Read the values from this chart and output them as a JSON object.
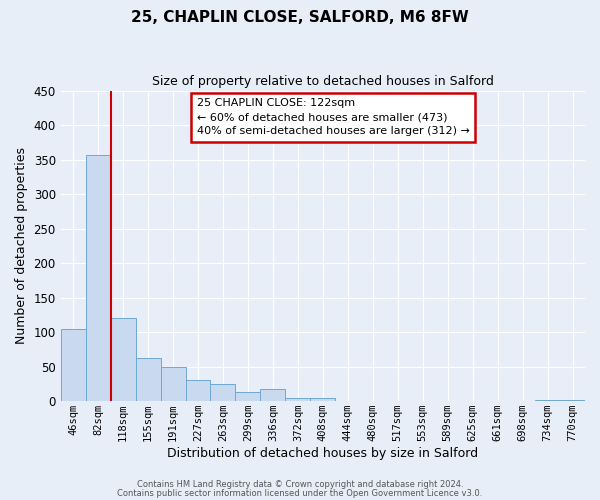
{
  "title": "25, CHAPLIN CLOSE, SALFORD, M6 8FW",
  "subtitle": "Size of property relative to detached houses in Salford",
  "xlabel": "Distribution of detached houses by size in Salford",
  "ylabel": "Number of detached properties",
  "bar_labels": [
    "46sqm",
    "82sqm",
    "118sqm",
    "155sqm",
    "191sqm",
    "227sqm",
    "263sqm",
    "299sqm",
    "336sqm",
    "372sqm",
    "408sqm",
    "444sqm",
    "480sqm",
    "517sqm",
    "553sqm",
    "589sqm",
    "625sqm",
    "661sqm",
    "698sqm",
    "734sqm",
    "770sqm"
  ],
  "bar_values": [
    105,
    357,
    121,
    62,
    49,
    30,
    25,
    13,
    17,
    5,
    5,
    0,
    0,
    0,
    0,
    0,
    0,
    0,
    0,
    1,
    1
  ],
  "bar_color": "#c8d9f0",
  "bar_edge_color": "#6fa8d4",
  "ylim": [
    0,
    450
  ],
  "yticks": [
    0,
    50,
    100,
    150,
    200,
    250,
    300,
    350,
    400,
    450
  ],
  "red_line_index": 2,
  "annotation_title": "25 CHAPLIN CLOSE: 122sqm",
  "annotation_line1": "← 60% of detached houses are smaller (473)",
  "annotation_line2": "40% of semi-detached houses are larger (312) →",
  "footer_line1": "Contains HM Land Registry data © Crown copyright and database right 2024.",
  "footer_line2": "Contains public sector information licensed under the Open Government Licence v3.0.",
  "background_color": "#e8eef8",
  "grid_color": "#ffffff",
  "annotation_box_color": "#ffffff",
  "annotation_box_edge": "#cc0000",
  "red_line_color": "#cc0000"
}
